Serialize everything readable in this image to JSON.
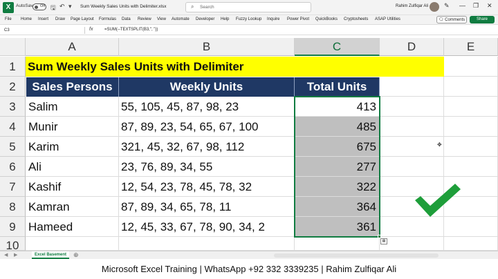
{
  "titlebar": {
    "autosave_label": "AutoSave",
    "autosave_state": "Off",
    "file_title": "Sum Weekly Sales Units with Delimiter.xlsx",
    "search_placeholder": "Search",
    "user_name": "Rahim Zulfiqar Ali"
  },
  "ribbon": {
    "tabs": [
      "File",
      "Home",
      "Insert",
      "Draw",
      "Page Layout",
      "Formulas",
      "Data",
      "Review",
      "View",
      "Automate",
      "Developer",
      "Help",
      "Fuzzy Lookup",
      "Inquire",
      "Power Pivot",
      "QuickBooks",
      "Cryptosheets",
      "ASAP Utilities"
    ],
    "comments_label": "Comments",
    "share_label": "Share"
  },
  "formula_bar": {
    "name_box": "C3",
    "fx": "fx",
    "formula": "=SUM(--TEXTSPLIT(B3,\", \"))"
  },
  "columns": [
    "A",
    "B",
    "C",
    "D",
    "E"
  ],
  "rows": [
    "1",
    "2",
    "3",
    "4",
    "5",
    "6",
    "7",
    "8",
    "9",
    "10"
  ],
  "sheet": {
    "title": "Sum Weekly Sales Units with Delimiter",
    "headers": [
      "Sales Persons",
      "Weekly Units",
      "Total Units"
    ],
    "data": [
      {
        "name": "Salim",
        "weekly": "55, 105, 45, 87, 98, 23",
        "total": "413"
      },
      {
        "name": "Munir",
        "weekly": "87, 89, 23, 54, 65, 67, 100",
        "total": "485"
      },
      {
        "name": "Karim",
        "weekly": "321, 45, 32, 67, 98, 112",
        "total": "675"
      },
      {
        "name": "Ali",
        "weekly": "23, 76, 89, 34, 55",
        "total": "277"
      },
      {
        "name": "Kashif",
        "weekly": "12, 54, 23, 78, 45, 78, 32",
        "total": "322"
      },
      {
        "name": "Kamran",
        "weekly": "87, 89, 34, 65, 78, 11",
        "total": "364"
      },
      {
        "name": "Hameed",
        "weekly": "12, 45, 33, 67, 78, 90, 34, 2",
        "total": "361"
      }
    ]
  },
  "sheet_tabs": {
    "active": "Excel Basement"
  },
  "footer": {
    "text": "Microsoft Excel Training | WhatsApp +92 332 3339235 | Rahim Zulfiqar Ali"
  },
  "colors": {
    "excel_green": "#107c41",
    "header_navy": "#1f3864",
    "title_yellow": "#ffff00",
    "selection_gray": "#bfbfbf",
    "check_green": "#1e9e3a"
  }
}
